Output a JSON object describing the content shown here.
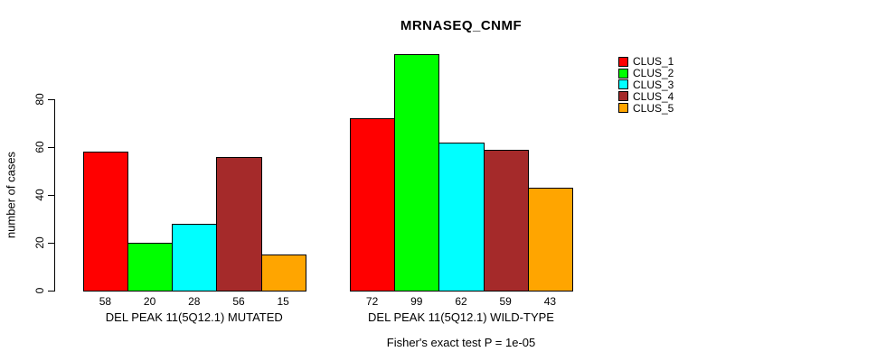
{
  "title": "MRNASEQ_CNMF",
  "footer": "Fisher's exact test P = 1e-05",
  "chart_data": {
    "type": "bar",
    "title": "MRNASEQ_CNMF",
    "xlabel": "",
    "ylabel": "number of cases",
    "yticks": [
      0,
      20,
      40,
      60,
      80
    ],
    "ylim": [
      0,
      99
    ],
    "grid": false,
    "legend_position": "right",
    "categories": [
      "DEL PEAK 11(5Q12.1) MUTATED",
      "DEL PEAK 11(5Q12.1) WILD-TYPE"
    ],
    "series": [
      {
        "name": "CLUS_1",
        "color": "#ff0000",
        "values": [
          58,
          72
        ]
      },
      {
        "name": "CLUS_2",
        "color": "#00ff00",
        "values": [
          20,
          99
        ]
      },
      {
        "name": "CLUS_3",
        "color": "#00ffff",
        "values": [
          28,
          62
        ]
      },
      {
        "name": "CLUS_4",
        "color": "#a52a2a",
        "values": [
          56,
          59
        ]
      },
      {
        "name": "CLUS_5",
        "color": "#ffa500",
        "values": [
          15,
          43
        ]
      }
    ],
    "bar_value_labels": [
      [
        58,
        20,
        28,
        56,
        15
      ],
      [
        72,
        99,
        62,
        59,
        43
      ]
    ],
    "annotation": "Fisher's exact test P = 1e-05"
  },
  "legend": {
    "items": [
      {
        "label": "CLUS_1",
        "color": "#ff0000"
      },
      {
        "label": "CLUS_2",
        "color": "#00ff00"
      },
      {
        "label": "CLUS_3",
        "color": "#00ffff"
      },
      {
        "label": "CLUS_4",
        "color": "#a52a2a"
      },
      {
        "label": "CLUS_5",
        "color": "#ffa500"
      }
    ]
  }
}
